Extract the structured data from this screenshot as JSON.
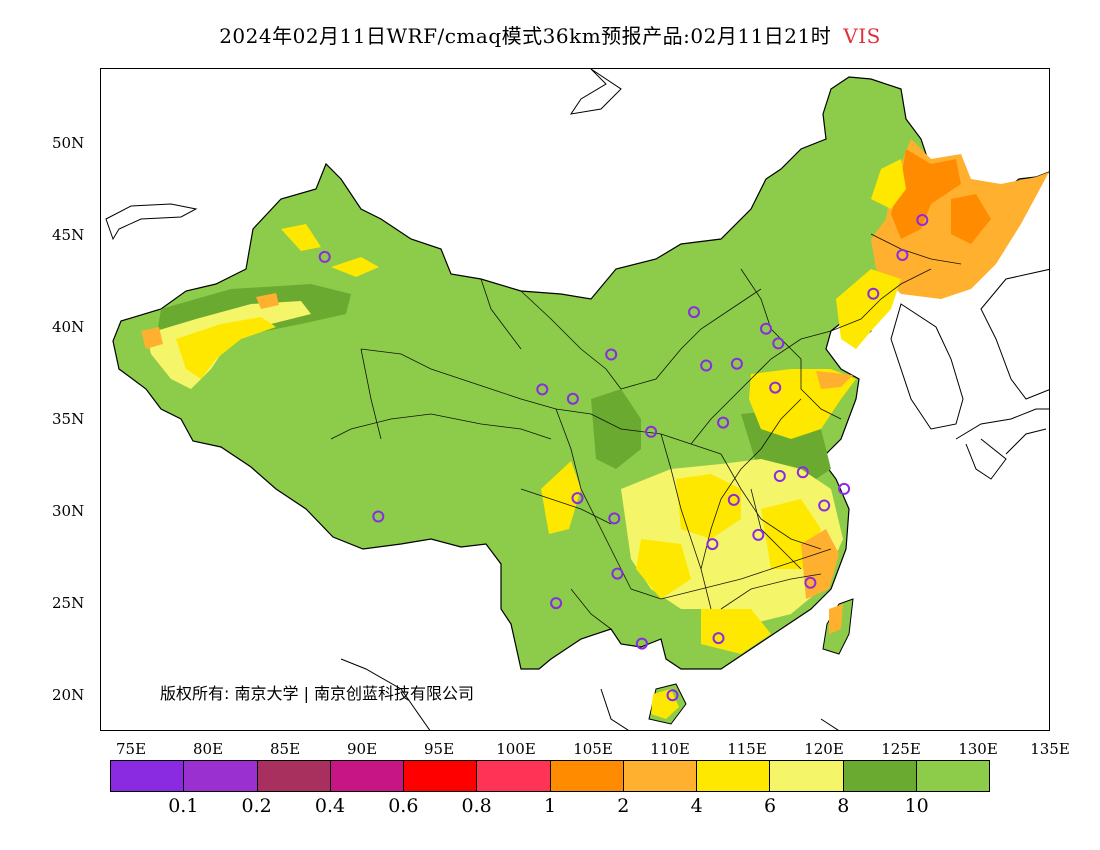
{
  "title": {
    "main": "2024年02月11日WRF/cmaq模式36km预报产品:02月11日21时",
    "variable": "VIS"
  },
  "axes": {
    "lat_labels": [
      "50N",
      "45N",
      "40N",
      "35N",
      "30N",
      "25N",
      "20N"
    ],
    "lon_labels": [
      "75E",
      "80E",
      "85E",
      "90E",
      "95E",
      "100E",
      "105E",
      "110E",
      "115E",
      "120E",
      "125E",
      "130E",
      "135E"
    ]
  },
  "copyright": "版权所有: 南京大学 | 南京创蓝科技有限公司",
  "colorbar": {
    "colors": [
      "#8a2be2",
      "#9b30d0",
      "#a8305e",
      "#c71585",
      "#ff0000",
      "#ff3355",
      "#ff8c00",
      "#ffb02e",
      "#ffe800",
      "#f5f56a",
      "#6aaa30",
      "#8ccc4a"
    ],
    "labels": [
      "0.1",
      "0.2",
      "0.4",
      "0.6",
      "0.8",
      "1",
      "2",
      "4",
      "6",
      "8",
      "10"
    ]
  },
  "legend_colors": {
    "land_base": "#8ccc4a",
    "dark_green": "#6aaa30",
    "light_yellow": "#f5f56a",
    "yellow": "#ffe800",
    "orange": "#ffb02e",
    "dark_orange": "#ff8c00",
    "station_ring": "#8a2be2"
  },
  "stations": [
    {
      "lon": 87.6,
      "lat": 43.8
    },
    {
      "lon": 91.1,
      "lat": 29.7
    },
    {
      "lon": 101.8,
      "lat": 36.6
    },
    {
      "lon": 103.8,
      "lat": 36.1
    },
    {
      "lon": 106.3,
      "lat": 38.5
    },
    {
      "lon": 104.1,
      "lat": 30.7
    },
    {
      "lon": 106.5,
      "lat": 29.6
    },
    {
      "lon": 106.7,
      "lat": 26.6
    },
    {
      "lon": 102.7,
      "lat": 25.0
    },
    {
      "lon": 108.3,
      "lat": 22.8
    },
    {
      "lon": 110.3,
      "lat": 20.0
    },
    {
      "lon": 113.3,
      "lat": 23.1
    },
    {
      "lon": 112.9,
      "lat": 28.2
    },
    {
      "lon": 114.3,
      "lat": 30.6
    },
    {
      "lon": 115.9,
      "lat": 28.7
    },
    {
      "lon": 117.3,
      "lat": 31.9
    },
    {
      "lon": 119.3,
      "lat": 26.1
    },
    {
      "lon": 120.2,
      "lat": 30.3
    },
    {
      "lon": 118.8,
      "lat": 32.1
    },
    {
      "lon": 121.5,
      "lat": 31.2
    },
    {
      "lon": 108.9,
      "lat": 34.3
    },
    {
      "lon": 113.6,
      "lat": 34.8
    },
    {
      "lon": 117.0,
      "lat": 36.7
    },
    {
      "lon": 112.5,
      "lat": 37.9
    },
    {
      "lon": 114.5,
      "lat": 38.0
    },
    {
      "lon": 116.4,
      "lat": 39.9
    },
    {
      "lon": 117.2,
      "lat": 39.1
    },
    {
      "lon": 111.7,
      "lat": 40.8
    },
    {
      "lon": 123.4,
      "lat": 41.8
    },
    {
      "lon": 125.3,
      "lat": 43.9
    },
    {
      "lon": 126.6,
      "lat": 45.8
    }
  ]
}
